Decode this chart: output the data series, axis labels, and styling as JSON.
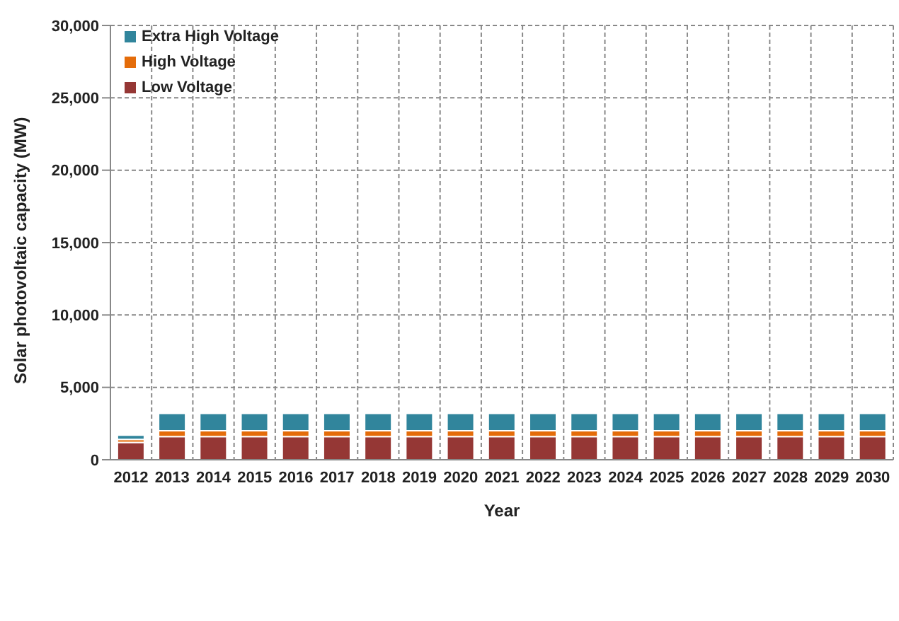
{
  "chart_data": {
    "type": "bar",
    "stacked": true,
    "xlabel": "Year",
    "ylabel": "Solar photovoltaic capacity (MW)",
    "categories": [
      "2012",
      "2013",
      "2014",
      "2015",
      "2016",
      "2017",
      "2018",
      "2019",
      "2020",
      "2021",
      "2022",
      "2023",
      "2024",
      "2025",
      "2026",
      "2027",
      "2028",
      "2029",
      "2030"
    ],
    "series": [
      {
        "name": "Low Voltage",
        "color": "#953735",
        "values": [
          1200,
          1600,
          1600,
          1600,
          1600,
          1600,
          1600,
          1600,
          1600,
          1600,
          1600,
          1600,
          1600,
          1600,
          1600,
          1600,
          1600,
          1600,
          1600
        ]
      },
      {
        "name": "High Voltage",
        "color": "#e46c0a",
        "values": [
          200,
          400,
          400,
          400,
          400,
          400,
          400,
          400,
          400,
          400,
          400,
          400,
          400,
          400,
          400,
          400,
          400,
          400,
          400
        ]
      },
      {
        "name": "Extra High Voltage",
        "color": "#31859c",
        "values": [
          300,
          1200,
          1200,
          1200,
          1200,
          1200,
          1200,
          1200,
          1200,
          1200,
          1200,
          1200,
          1200,
          1200,
          1200,
          1200,
          1200,
          1200,
          1200
        ]
      }
    ],
    "ylim": [
      0,
      30000
    ],
    "yticks": [
      0,
      {
        "value": 5000,
        "label": "5,000"
      },
      {
        "value": 10000,
        "label": "10,000"
      },
      {
        "value": 15000,
        "label": "15,000"
      },
      {
        "value": 20000,
        "label": "20,000"
      },
      {
        "value": 25000,
        "label": "25,000"
      },
      {
        "value": 30000,
        "label": "30,000"
      }
    ],
    "grid": true,
    "legend": "top left"
  }
}
